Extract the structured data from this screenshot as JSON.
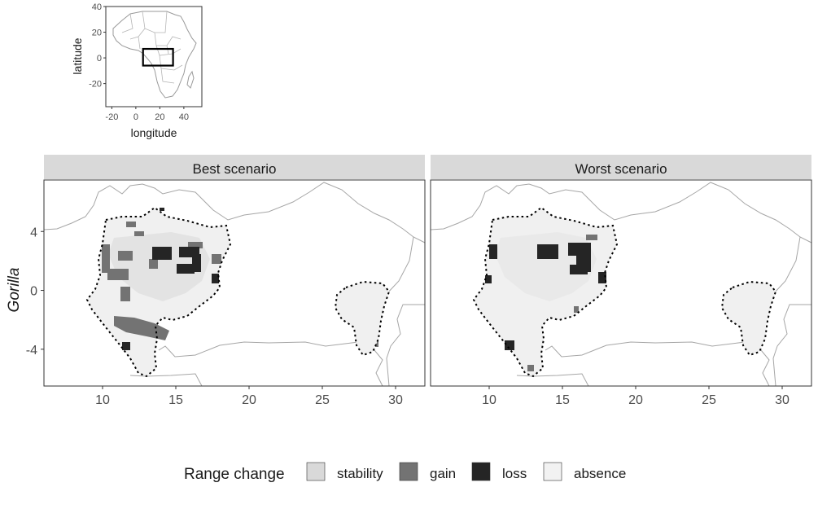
{
  "chart_data": {
    "type": "map",
    "row_label": "Gorilla",
    "panels": [
      {
        "strip": "Best scenario",
        "xlim": [
          6,
          32
        ],
        "ylim": [
          -6.5,
          7.5
        ],
        "xticks": [
          10,
          15,
          20,
          25,
          30
        ],
        "yticks": [
          4,
          0,
          -4
        ]
      },
      {
        "strip": "Worst scenario",
        "xlim": [
          6,
          32
        ],
        "ylim": [
          -6.5,
          7.5
        ],
        "xticks": [
          10,
          15,
          20,
          25,
          30
        ],
        "yticks": [
          4,
          0,
          -4
        ]
      }
    ],
    "inset": {
      "xlabel": "longitude",
      "ylabel": "latitude",
      "xticks": [
        -20,
        0,
        20,
        40
      ],
      "yticks": [
        40,
        20,
        0,
        -20
      ],
      "xlim": [
        -25,
        55
      ],
      "ylim": [
        -38,
        40
      ],
      "extent_box": {
        "lon": [
          6,
          31
        ],
        "lat": [
          -6,
          7
        ]
      }
    },
    "legend": {
      "title": "Range change",
      "position": "bottom",
      "items": [
        {
          "label": "stability",
          "color": "#d9d9d9"
        },
        {
          "label": "gain",
          "color": "#737373"
        },
        {
          "label": "loss",
          "color": "#252525"
        },
        {
          "label": "absence",
          "color": "#f2f2f2"
        }
      ]
    }
  }
}
